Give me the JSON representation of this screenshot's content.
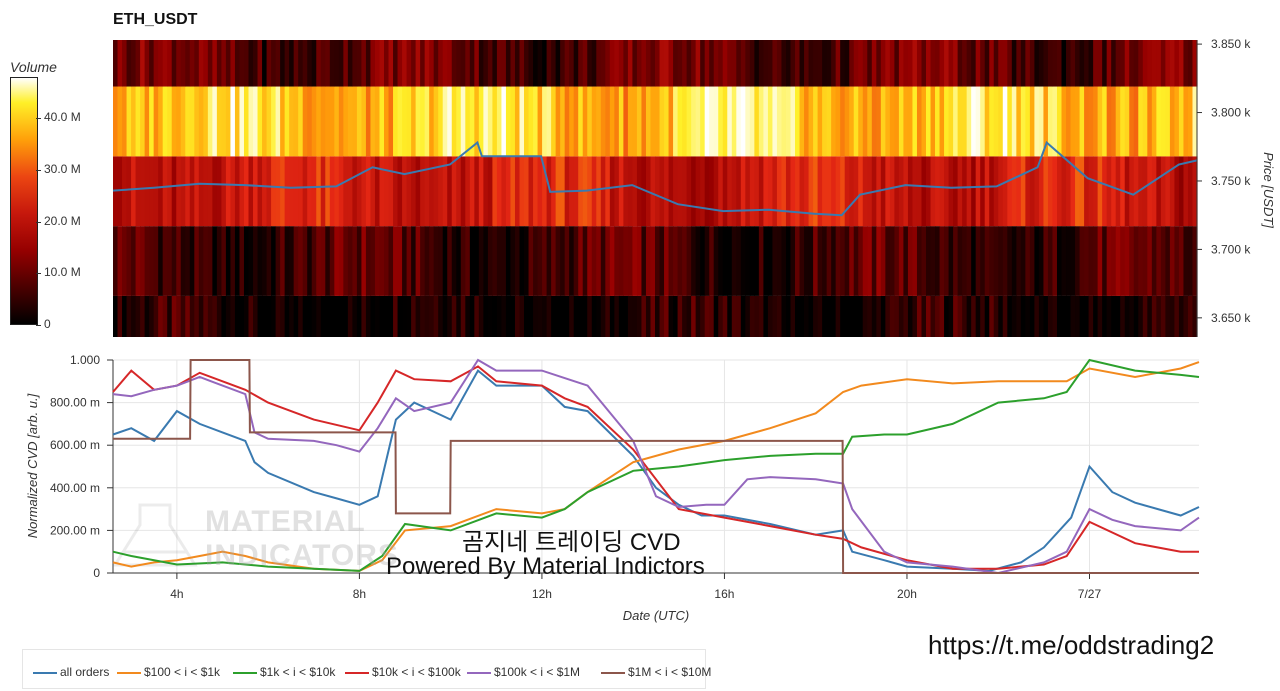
{
  "title": "ETH_USDT",
  "colorbar": {
    "title": "Volume",
    "ticks": [
      "40.0 M",
      "30.0 M",
      "20.0 M",
      "10.0 M",
      "0"
    ],
    "tick_values": [
      40,
      30,
      20,
      10,
      0
    ],
    "max": 48
  },
  "watermarks": {
    "text1": "곰지네 트레이딩 CVD",
    "text2": "Powered By Material Indictors",
    "material": "MATERIAL INDICATORS",
    "url": "https://t.me/oddstrading2"
  },
  "colors": {
    "all_orders": "#3a7ab0",
    "s100_1k": "#f28a1e",
    "s1k_10k": "#2ca02c",
    "s10k_100k": "#d62728",
    "s100k_1m": "#9467bd",
    "s1m_10m": "#8c564b"
  },
  "chart_data": [
    {
      "type": "heatmap",
      "title": "ETH_USDT",
      "ylabel": "Price [USDT]",
      "y_ticks": [
        "3.850 k",
        "3.800 k",
        "3.750 k",
        "3.700 k",
        "3.650 k"
      ],
      "y_tick_values": [
        3850,
        3800,
        3750,
        3700,
        3650
      ],
      "ylim": [
        3636,
        3853
      ],
      "xlim": [
        2.6,
        26.4
      ],
      "price_bands": [
        {
          "low": 3636,
          "high": 3666,
          "volume_M": 2
        },
        {
          "low": 3666,
          "high": 3717,
          "volume_M": 6
        },
        {
          "low": 3717,
          "high": 3768,
          "volume_M": 22
        },
        {
          "low": 3768,
          "high": 3819,
          "volume_M": 40
        },
        {
          "low": 3819,
          "high": 3853,
          "volume_M": 9
        }
      ],
      "price_line": {
        "name": "price",
        "x": [
          2.6,
          3.5,
          4.5,
          5.5,
          6.5,
          7.5,
          8.3,
          9.0,
          10.0,
          10.6,
          10.7,
          11.5,
          12.0,
          12.2,
          13.0,
          14.0,
          15.0,
          16.0,
          17.0,
          18.0,
          18.6,
          19.0,
          20.0,
          21.0,
          22.0,
          22.9,
          23.1,
          24.0,
          25.0,
          26.0,
          26.4
        ],
        "y": [
          3743,
          3745,
          3748,
          3747,
          3745,
          3746,
          3760,
          3755,
          3762,
          3778,
          3768,
          3768,
          3768,
          3742,
          3743,
          3747,
          3733,
          3728,
          3729,
          3726,
          3725,
          3740,
          3747,
          3745,
          3746,
          3760,
          3778,
          3752,
          3740,
          3762,
          3765
        ]
      }
    },
    {
      "type": "line",
      "xlabel": "Date (UTC)",
      "ylabel": "Normalized CVD [arb. u.]",
      "x_ticks": [
        "4h",
        "8h",
        "12h",
        "16h",
        "20h",
        "7/27"
      ],
      "x_tick_values": [
        4,
        8,
        12,
        16,
        20,
        24
      ],
      "y_ticks": [
        "1.000",
        "800.00 m",
        "600.00 m",
        "400.00 m",
        "200.00 m",
        "0"
      ],
      "y_tick_values": [
        1.0,
        0.8,
        0.6,
        0.4,
        0.2,
        0
      ],
      "ylim": [
        0,
        1.0
      ],
      "xlim": [
        2.6,
        26.4
      ],
      "grid": true,
      "legend_position": "bottom-left",
      "series": [
        {
          "name": "all orders",
          "color_key": "all_orders",
          "x": [
            2.6,
            3.0,
            3.5,
            4.0,
            4.5,
            5.0,
            5.5,
            5.7,
            6.0,
            7.0,
            7.5,
            8.0,
            8.4,
            8.8,
            9.2,
            10.0,
            10.6,
            11.0,
            12.0,
            12.5,
            13.0,
            14.0,
            14.5,
            15.0,
            15.5,
            16.0,
            17.0,
            18.0,
            18.6,
            18.8,
            19.5,
            20.0,
            21.0,
            21.8,
            22.5,
            23.0,
            23.6,
            24.0,
            24.5,
            25.0,
            25.5,
            26.0,
            26.4
          ],
          "y": [
            0.65,
            0.68,
            0.62,
            0.76,
            0.7,
            0.66,
            0.62,
            0.52,
            0.47,
            0.38,
            0.35,
            0.32,
            0.36,
            0.72,
            0.8,
            0.72,
            0.95,
            0.88,
            0.88,
            0.78,
            0.76,
            0.55,
            0.4,
            0.32,
            0.27,
            0.27,
            0.23,
            0.18,
            0.2,
            0.1,
            0.06,
            0.03,
            0.02,
            0.01,
            0.05,
            0.12,
            0.26,
            0.5,
            0.38,
            0.33,
            0.3,
            0.27,
            0.31
          ]
        },
        {
          "name": "$100 < i < $1k",
          "color_key": "s100_1k",
          "x": [
            2.6,
            3.0,
            3.5,
            4.0,
            4.5,
            5.0,
            5.5,
            6.0,
            7.0,
            8.0,
            8.5,
            9.0,
            10.0,
            10.5,
            11.0,
            12.0,
            12.5,
            13.0,
            14.0,
            15.0,
            16.0,
            17.0,
            18.0,
            18.6,
            19.0,
            20.0,
            21.0,
            22.0,
            23.0,
            23.5,
            24.0,
            25.0,
            26.0,
            26.4
          ],
          "y": [
            0.05,
            0.03,
            0.05,
            0.06,
            0.08,
            0.1,
            0.08,
            0.05,
            0.02,
            0.01,
            0.06,
            0.2,
            0.22,
            0.26,
            0.3,
            0.28,
            0.3,
            0.38,
            0.52,
            0.58,
            0.62,
            0.68,
            0.75,
            0.85,
            0.88,
            0.91,
            0.89,
            0.9,
            0.9,
            0.9,
            0.96,
            0.92,
            0.96,
            0.99
          ]
        },
        {
          "name": "$1k < i < $10k",
          "color_key": "s1k_10k",
          "x": [
            2.6,
            3.0,
            4.0,
            5.0,
            6.0,
            7.0,
            8.0,
            8.5,
            9.0,
            10.0,
            11.0,
            12.0,
            12.5,
            13.0,
            14.0,
            15.0,
            16.0,
            17.0,
            18.0,
            18.6,
            18.8,
            19.5,
            20.0,
            21.0,
            22.0,
            23.0,
            23.5,
            24.0,
            25.0,
            26.0,
            26.4
          ],
          "y": [
            0.1,
            0.08,
            0.04,
            0.05,
            0.03,
            0.02,
            0.01,
            0.08,
            0.23,
            0.2,
            0.28,
            0.26,
            0.3,
            0.38,
            0.48,
            0.5,
            0.53,
            0.55,
            0.56,
            0.56,
            0.64,
            0.65,
            0.65,
            0.7,
            0.8,
            0.82,
            0.85,
            1.0,
            0.95,
            0.93,
            0.92
          ]
        },
        {
          "name": "$10k < i < $100k",
          "color_key": "s10k_100k",
          "x": [
            2.6,
            3.0,
            3.5,
            4.0,
            4.5,
            5.0,
            5.5,
            6.0,
            7.0,
            8.0,
            8.4,
            8.8,
            9.2,
            10.0,
            10.6,
            11.0,
            12.0,
            12.5,
            13.0,
            14.0,
            15.0,
            16.0,
            17.0,
            18.0,
            18.6,
            19.0,
            20.0,
            21.0,
            22.0,
            23.0,
            23.5,
            24.0,
            25.0,
            26.0,
            26.4
          ],
          "y": [
            0.85,
            0.95,
            0.86,
            0.88,
            0.94,
            0.9,
            0.86,
            0.8,
            0.72,
            0.67,
            0.8,
            0.95,
            0.91,
            0.9,
            0.97,
            0.9,
            0.88,
            0.82,
            0.78,
            0.58,
            0.3,
            0.26,
            0.22,
            0.18,
            0.16,
            0.12,
            0.06,
            0.02,
            0.02,
            0.04,
            0.08,
            0.24,
            0.14,
            0.1,
            0.1
          ]
        },
        {
          "name": "$100k < i < $1M",
          "color_key": "s100k_1m",
          "x": [
            2.6,
            3.0,
            3.5,
            4.0,
            4.5,
            5.0,
            5.5,
            5.7,
            6.0,
            7.0,
            7.5,
            8.0,
            8.4,
            8.8,
            9.2,
            10.0,
            10.6,
            11.0,
            12.0,
            13.0,
            14.0,
            14.5,
            15.0,
            15.6,
            16.0,
            16.5,
            17.0,
            18.0,
            18.6,
            18.8,
            19.5,
            20.0,
            21.0,
            22.0,
            23.0,
            23.5,
            24.0,
            24.5,
            25.0,
            26.0,
            26.4
          ],
          "y": [
            0.84,
            0.83,
            0.86,
            0.88,
            0.92,
            0.88,
            0.84,
            0.66,
            0.63,
            0.62,
            0.6,
            0.57,
            0.68,
            0.82,
            0.76,
            0.8,
            1.0,
            0.95,
            0.95,
            0.88,
            0.62,
            0.36,
            0.31,
            0.32,
            0.32,
            0.44,
            0.45,
            0.44,
            0.42,
            0.3,
            0.1,
            0.05,
            0.03,
            0.0,
            0.05,
            0.1,
            0.3,
            0.25,
            0.22,
            0.2,
            0.26
          ]
        },
        {
          "name": "$1M < i < $10M",
          "color_key": "s1m_10m",
          "x": [
            2.6,
            4.29,
            4.3,
            5.59,
            5.6,
            8.79,
            8.8,
            9.99,
            10.0,
            18.59,
            18.6,
            26.4
          ],
          "y": [
            0.63,
            0.63,
            1.0,
            1.0,
            0.66,
            0.66,
            0.28,
            0.28,
            0.62,
            0.62,
            0.0,
            0.0
          ]
        }
      ]
    }
  ]
}
